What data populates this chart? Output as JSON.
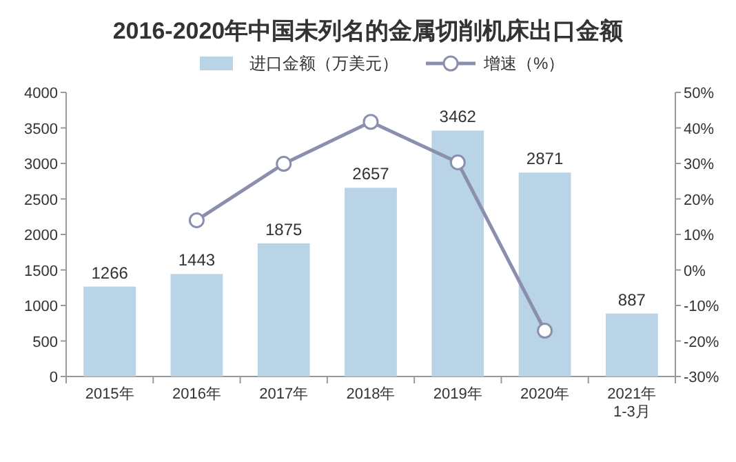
{
  "chart_data": {
    "type": "bar",
    "title": "2016-2020年中国未列名的金属切削机床出口金额",
    "categories": [
      "2015年",
      "2016年",
      "2017年",
      "2018年",
      "2019年",
      "2020年",
      "2021年\n1-3月"
    ],
    "series": [
      {
        "name": "进口金额（万美元）",
        "color": "#b8d4e6",
        "values": [
          1266,
          1443,
          1875,
          2657,
          3462,
          2871,
          887
        ],
        "value_labels": [
          "1266",
          "1443",
          "1875",
          "2657",
          "3462",
          "2871",
          "887"
        ]
      },
      {
        "name": "增速（%）",
        "type": "line",
        "axis": "y2",
        "marker": "circle",
        "color": "#8a8fae",
        "values": [
          null,
          14.0,
          29.9,
          41.7,
          30.3,
          -17.1,
          null
        ]
      }
    ],
    "ylim": [
      0,
      4000
    ],
    "yticks": [
      0,
      500,
      1000,
      1500,
      2000,
      2500,
      3000,
      3500,
      4000
    ],
    "y2lim": [
      -30,
      50
    ],
    "y2ticks": [
      {
        "value": -30,
        "label": "-30%"
      },
      {
        "value": -20,
        "label": "-20%"
      },
      {
        "value": -10,
        "label": "-10%"
      },
      {
        "value": 0,
        "label": "0%"
      },
      {
        "value": 10,
        "label": "10%"
      },
      {
        "value": 20,
        "label": "20%"
      },
      {
        "value": 30,
        "label": "30%"
      },
      {
        "value": 40,
        "label": "40%"
      },
      {
        "value": 50,
        "label": "50%"
      }
    ],
    "legend": "top",
    "grid": false
  }
}
